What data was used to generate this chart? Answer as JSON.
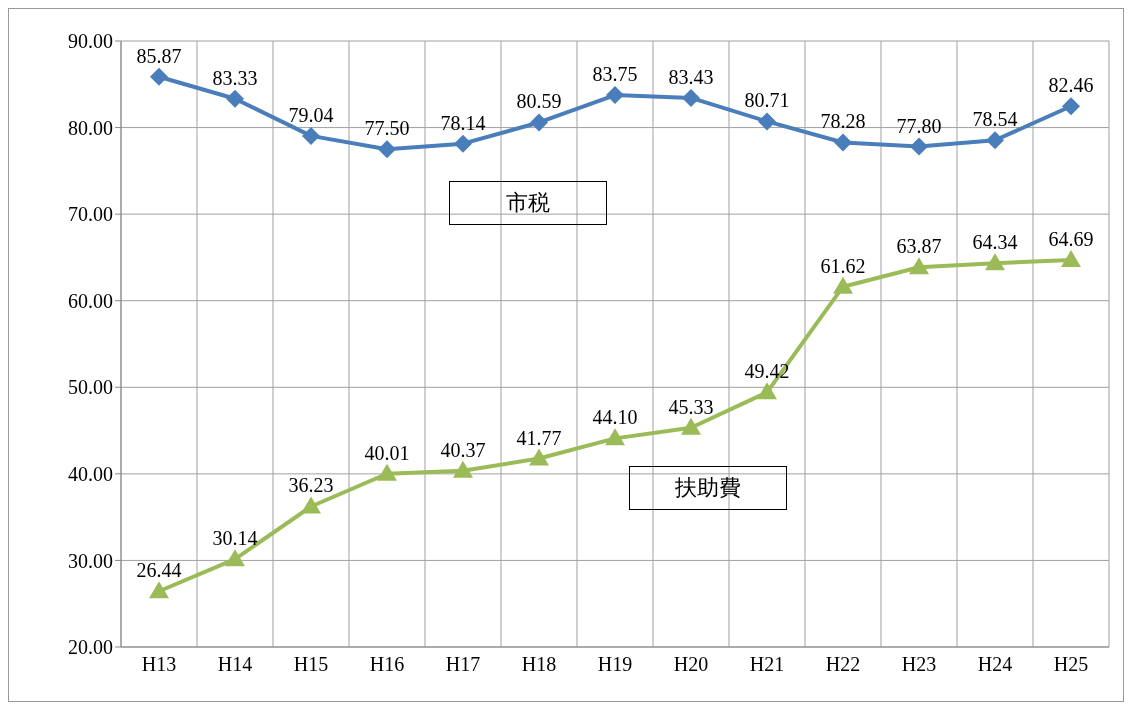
{
  "chart_data": {
    "type": "line",
    "categories": [
      "H13",
      "H14",
      "H15",
      "H16",
      "H17",
      "H18",
      "H19",
      "H20",
      "H21",
      "H22",
      "H23",
      "H24",
      "H25"
    ],
    "series": [
      {
        "name": "市税",
        "color": "#4a7ebb",
        "marker": "diamond",
        "values": [
          85.87,
          83.33,
          79.04,
          77.5,
          78.14,
          80.59,
          83.75,
          83.43,
          80.71,
          78.28,
          77.8,
          78.54,
          82.46
        ],
        "value_labels": [
          "85.87",
          "83.33",
          "79.04",
          "77.50",
          "78.14",
          "80.59",
          "83.75",
          "83.43",
          "80.71",
          "78.28",
          "77.80",
          "78.54",
          "82.46"
        ]
      },
      {
        "name": "扶助費",
        "color": "#9bbb59",
        "marker": "triangle",
        "values": [
          26.44,
          30.14,
          36.23,
          40.01,
          40.37,
          41.77,
          44.1,
          45.33,
          49.42,
          61.62,
          63.87,
          64.34,
          64.69
        ],
        "value_labels": [
          "26.44",
          "30.14",
          "36.23",
          "40.01",
          "40.37",
          "41.77",
          "44.10",
          "45.33",
          "49.42",
          "61.62",
          "63.87",
          "64.34",
          "64.69"
        ]
      }
    ],
    "ylim": [
      20,
      90
    ],
    "yticks": [
      {
        "value": 20,
        "label": "20.00"
      },
      {
        "value": 30,
        "label": "30.00"
      },
      {
        "value": 40,
        "label": "40.00"
      },
      {
        "value": 50,
        "label": "50.00"
      },
      {
        "value": 60,
        "label": "60.00"
      },
      {
        "value": 70,
        "label": "70.00"
      },
      {
        "value": 80,
        "label": "80.00"
      },
      {
        "value": 90,
        "label": "90.00"
      }
    ],
    "grid": true,
    "legend": false,
    "line_style": "solid"
  }
}
